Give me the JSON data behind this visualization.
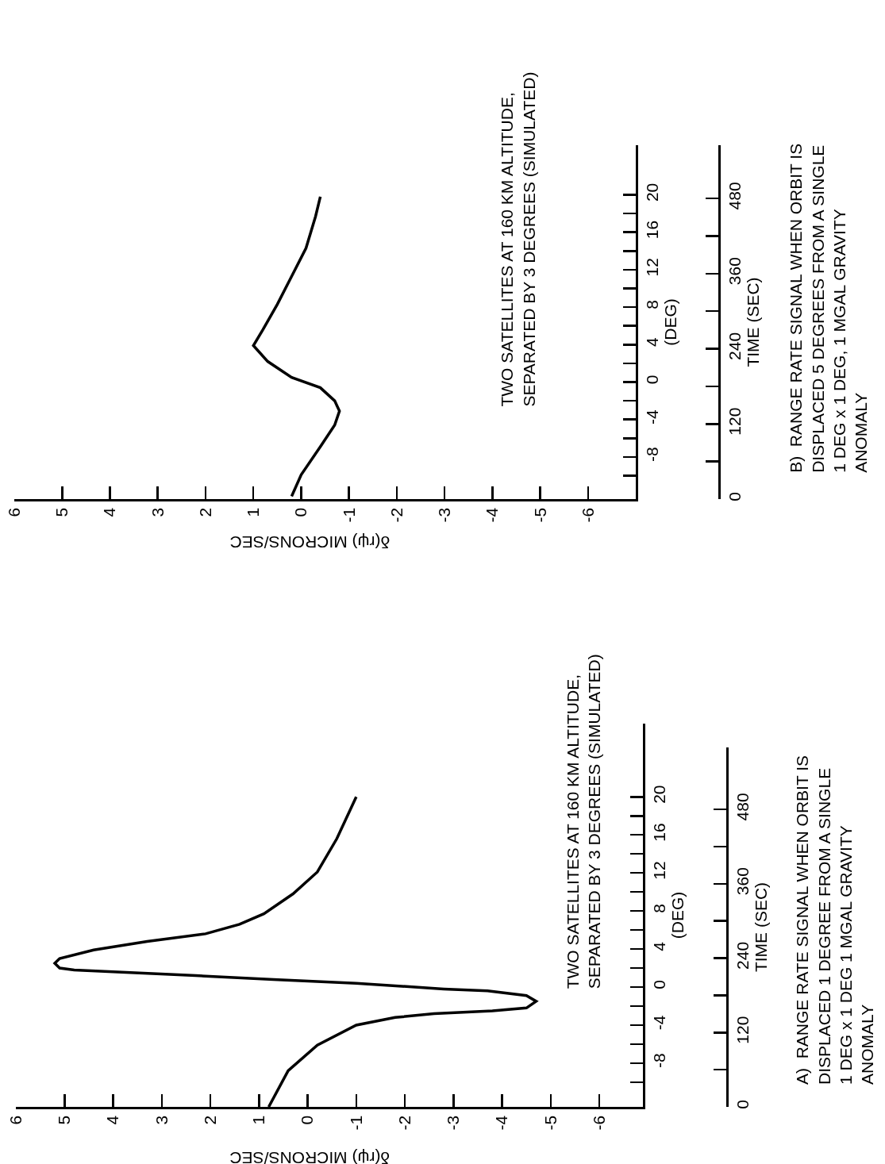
{
  "chart_data": [
    {
      "type": "line",
      "xlabel": "δ(rψ) MICRONS/SEC",
      "ylabel": "(DEG)",
      "y2label": "TIME (SEC)",
      "annotations": [
        "TWO SATELLITES AT 160 KM ALTITUDE,\nSEPARATED BY 3 DEGREES (SIMULATED)",
        "A)  RANGE RATE SIGNAL WHEN ORBIT IS\nDISPLACED 1 DEGREE FROM A SINGLE\n1 DEG x 1 DEG 1 MGAL GRAVITY\nANOMALY"
      ],
      "x": [
        0.8,
        0.4,
        -0.2,
        -1.0,
        -1.8,
        -2.6,
        -3.8,
        -4.5,
        -4.7,
        -4.5,
        -3.7,
        -2.8,
        -1.0,
        0.7,
        2.3,
        4.0,
        4.8,
        5.1,
        5.2,
        5.1,
        4.4,
        3.3,
        2.1,
        1.4,
        0.9,
        0.3,
        -0.2,
        -0.6,
        -1.0
      ],
      "series": [
        {
          "color": "#000000",
          "values": [
            -12.6,
            -8.8,
            -6.1,
            -4.0,
            -3.2,
            -2.8,
            -2.5,
            -2.2,
            -1.5,
            -0.9,
            -0.4,
            -0.2,
            0.4,
            0.8,
            1.2,
            1.6,
            1.8,
            2.0,
            2.5,
            3.0,
            3.9,
            4.8,
            5.6,
            6.6,
            7.7,
            9.8,
            12.1,
            15.6,
            20.0
          ]
        }
      ],
      "xlim": [
        6,
        -6.9
      ],
      "xticks": [
        6,
        5,
        4,
        3,
        2,
        1,
        0,
        -1,
        -2,
        -3,
        -4,
        -5,
        -6
      ],
      "ylim": [
        -12.6,
        27.7
      ],
      "yticks": [
        {
          "value": -10,
          "label": null
        },
        -8,
        {
          "value": -6,
          "label": null
        },
        -4,
        {
          "value": -2,
          "label": null
        },
        0,
        {
          "value": 2,
          "label": null
        },
        4,
        {
          "value": 6,
          "label": null
        },
        8,
        {
          "value": 10,
          "label": null
        },
        12,
        {
          "value": 14,
          "label": null
        },
        16,
        {
          "value": 18,
          "label": null
        },
        20
      ],
      "y2lim": [
        0,
        580
      ],
      "y2ticks": [
        0,
        120,
        240,
        360,
        480
      ]
    },
    {
      "type": "line",
      "xlabel": "δ(rψ) MICRONS/SEC",
      "ylabel": "(DEG)",
      "y2label": "TIME (SEC)",
      "annotations": [
        "TWO SATELLITES AT 160 KM ALTITUDE,\nSEPARATED BY 3 DEGREES (SIMULATED)",
        "B)  RANGE RATE SIGNAL WHEN ORBIT IS\nDISPLACED 5 DEGREES FROM A SINGLE\n1 DEG x 1 DEG, 1 MGAL GRAVITY\nANOMALY"
      ],
      "x": [
        0.2,
        0.0,
        -0.4,
        -0.7,
        -0.8,
        -0.7,
        -0.4,
        0.2,
        0.7,
        1.0,
        0.8,
        0.5,
        0.2,
        -0.1,
        -0.3,
        -0.4
      ],
      "series": [
        {
          "color": "#000000",
          "values": [
            -12.2,
            -9.9,
            -6.9,
            -4.6,
            -3.1,
            -2.0,
            -0.6,
            0.5,
            2.2,
            3.9,
            5.6,
            8.3,
            11.3,
            14.3,
            17.7,
            19.8
          ]
        }
      ],
      "xlim": [
        6,
        -7
      ],
      "xticks": [
        6,
        5,
        4,
        3,
        2,
        1,
        0,
        -1,
        -2,
        -3,
        -4,
        -5,
        -6
      ],
      "ylim": [
        -12.5,
        25.3
      ],
      "yticks": [
        {
          "value": -10,
          "label": null
        },
        -8,
        {
          "value": -6,
          "label": null
        },
        -4,
        {
          "value": -2,
          "label": null
        },
        0,
        {
          "value": 2,
          "label": null
        },
        4,
        {
          "value": 6,
          "label": null
        },
        8,
        {
          "value": 10,
          "label": null
        },
        12,
        {
          "value": 14,
          "label": null
        },
        16,
        {
          "value": 18,
          "label": null
        },
        20
      ],
      "y2lim": [
        0,
        565
      ],
      "y2ticks": [
        0,
        120,
        240,
        360,
        480
      ]
    }
  ]
}
